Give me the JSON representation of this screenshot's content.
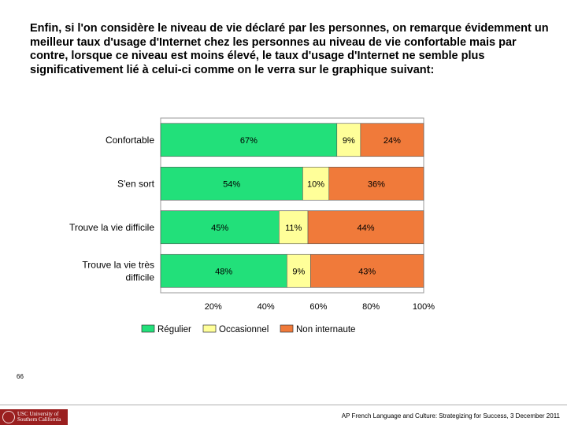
{
  "intro_text": "Enfin, si l'on considère le niveau de vie déclaré par les personnes, on remarque évidemment un meilleur taux d'usage d'Internet chez les personnes au niveau de vie confortable mais par contre, lorsque ce niveau est moins élevé, le taux d'usage d'Internet ne semble plus significativement lié à celui-ci comme on le verra sur le graphique suivant:",
  "page_number": "66",
  "footer": {
    "logo_text": "USC University of\nSouthern California",
    "text": "AP French Language and Culture: Strategizing for Success, 3 December 2011"
  },
  "colors": {
    "regulier": "#22e07a",
    "occasionnel": "#ffff99",
    "non_internaute": "#f07a3a",
    "frame": "#999999"
  },
  "chart_data": {
    "type": "bar",
    "orientation": "horizontal",
    "stacked": true,
    "categories": [
      "Confortable",
      "S'en sort",
      "Trouve la vie difficile",
      "Trouve la vie très difficile"
    ],
    "series": [
      {
        "name": "Régulier",
        "values": [
          67,
          54,
          45,
          48
        ],
        "labels": [
          "67%",
          "54%",
          "45%",
          "48%"
        ]
      },
      {
        "name": "Occasionnel",
        "values": [
          9,
          10,
          11,
          9
        ],
        "labels": [
          "9%",
          "10%",
          "11%",
          "9%"
        ]
      },
      {
        "name": "Non internaute",
        "values": [
          24,
          36,
          44,
          43
        ],
        "labels": [
          "24%",
          "36%",
          "44%",
          "43%"
        ]
      }
    ],
    "xticks": [
      "20%",
      "40%",
      "60%",
      "80%",
      "100%"
    ],
    "xtick_values": [
      20,
      40,
      60,
      80,
      100
    ],
    "xlim": [
      0,
      100
    ],
    "legend": [
      "Régulier",
      "Occasionnel",
      "Non internaute"
    ],
    "legend_position": "bottom",
    "grid": false
  }
}
